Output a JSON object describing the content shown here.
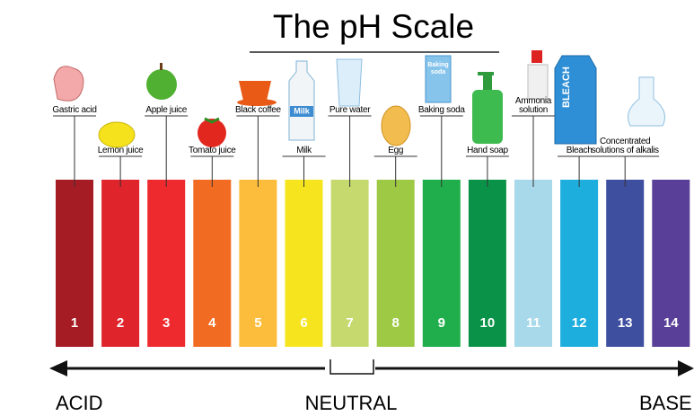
{
  "title": "The pH Scale",
  "items": [
    {
      "number": 1,
      "color": "#a51c24",
      "label": [
        "Gastric acid"
      ]
    },
    {
      "number": 2,
      "color": "#e0242c",
      "label": [
        "Lemon juice"
      ]
    },
    {
      "number": 3,
      "color": "#ee2a2e",
      "label": [
        "Apple juice"
      ]
    },
    {
      "number": 4,
      "color": "#f26b22",
      "label": [
        "Tomato juice"
      ]
    },
    {
      "number": 5,
      "color": "#fbbd3b",
      "label": [
        "Black coffee"
      ]
    },
    {
      "number": 6,
      "color": "#f6e51e",
      "label": [
        "Milk"
      ]
    },
    {
      "number": 7,
      "color": "#c6d96e",
      "label": [
        "Pure water"
      ]
    },
    {
      "number": 8,
      "color": "#9dc944",
      "label": [
        "Egg"
      ]
    },
    {
      "number": 9,
      "color": "#1fae4b",
      "label": [
        "Baking soda"
      ]
    },
    {
      "number": 10,
      "color": "#0a9348",
      "label": [
        "Hand soap"
      ]
    },
    {
      "number": 11,
      "color": "#a8d9ea",
      "label": [
        "Ammonia",
        "solution"
      ]
    },
    {
      "number": 12,
      "color": "#1eaede",
      "label": [
        "Bleach"
      ]
    },
    {
      "number": 13,
      "color": "#3f4fa0",
      "label": [
        "Concentrated",
        "solutions of alkalis"
      ]
    },
    {
      "number": 14,
      "color": "#5a3f98",
      "label": []
    }
  ],
  "scale": {
    "left": "ACID",
    "middle": "NEUTRAL",
    "right": "BASE"
  },
  "icons": {
    "milk": "Milk",
    "baking_soda": [
      "Baking",
      "soda"
    ],
    "bleach": "BLEACH"
  }
}
